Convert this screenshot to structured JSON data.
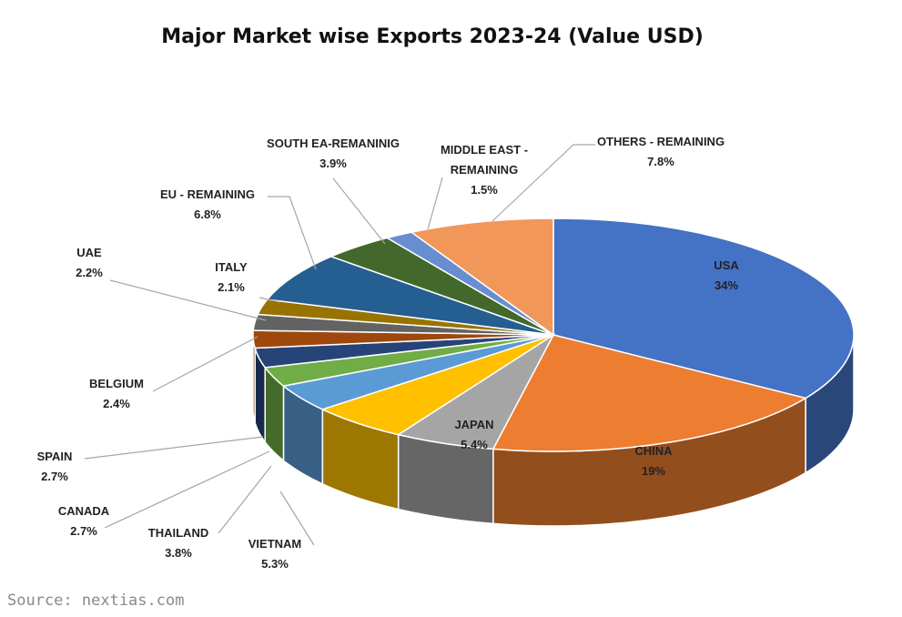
{
  "chart_data": {
    "type": "pie",
    "title": "Major Market wise Exports 2023-24 (Value USD)",
    "slices": [
      {
        "label": "USA",
        "display": "34%",
        "value": 34,
        "color": "#4472C4"
      },
      {
        "label": "CHINA",
        "display": "19%",
        "value": 19,
        "color": "#ED7D31"
      },
      {
        "label": "JAPAN",
        "display": "5.4%",
        "value": 5.4,
        "color": "#A5A5A5"
      },
      {
        "label": "VIETNAM",
        "display": "5.3%",
        "value": 5.3,
        "color": "#FFC000"
      },
      {
        "label": "THAILAND",
        "display": "3.8%",
        "value": 3.8,
        "color": "#5B9BD5"
      },
      {
        "label": "CANADA",
        "display": "2.7%",
        "value": 2.7,
        "color": "#70AD47"
      },
      {
        "label": "SPAIN",
        "display": "2.7%",
        "value": 2.7,
        "color": "#264478"
      },
      {
        "label": "BELGIUM",
        "display": "2.4%",
        "value": 2.4,
        "color": "#9E480E"
      },
      {
        "label": "UAE",
        "display": "2.2%",
        "value": 2.2,
        "color": "#636363"
      },
      {
        "label": "ITALY",
        "display": "2.1%",
        "value": 2.1,
        "color": "#997300"
      },
      {
        "label": "EU - REMAINING",
        "display": "6.8%",
        "value": 6.8,
        "color": "#255E91"
      },
      {
        "label": "SOUTH EA-REMANINIG",
        "display": "3.9%",
        "value": 3.9,
        "color": "#43682B"
      },
      {
        "label": "MIDDLE EAST - REMAINING",
        "display": "1.5%",
        "value": 1.5,
        "color": "#698ED0"
      },
      {
        "label": "OTHERS - REMAINING",
        "display": "7.8%",
        "value": 7.8,
        "color": "#F1975A"
      }
    ]
  },
  "source": "Source: nextias.com"
}
